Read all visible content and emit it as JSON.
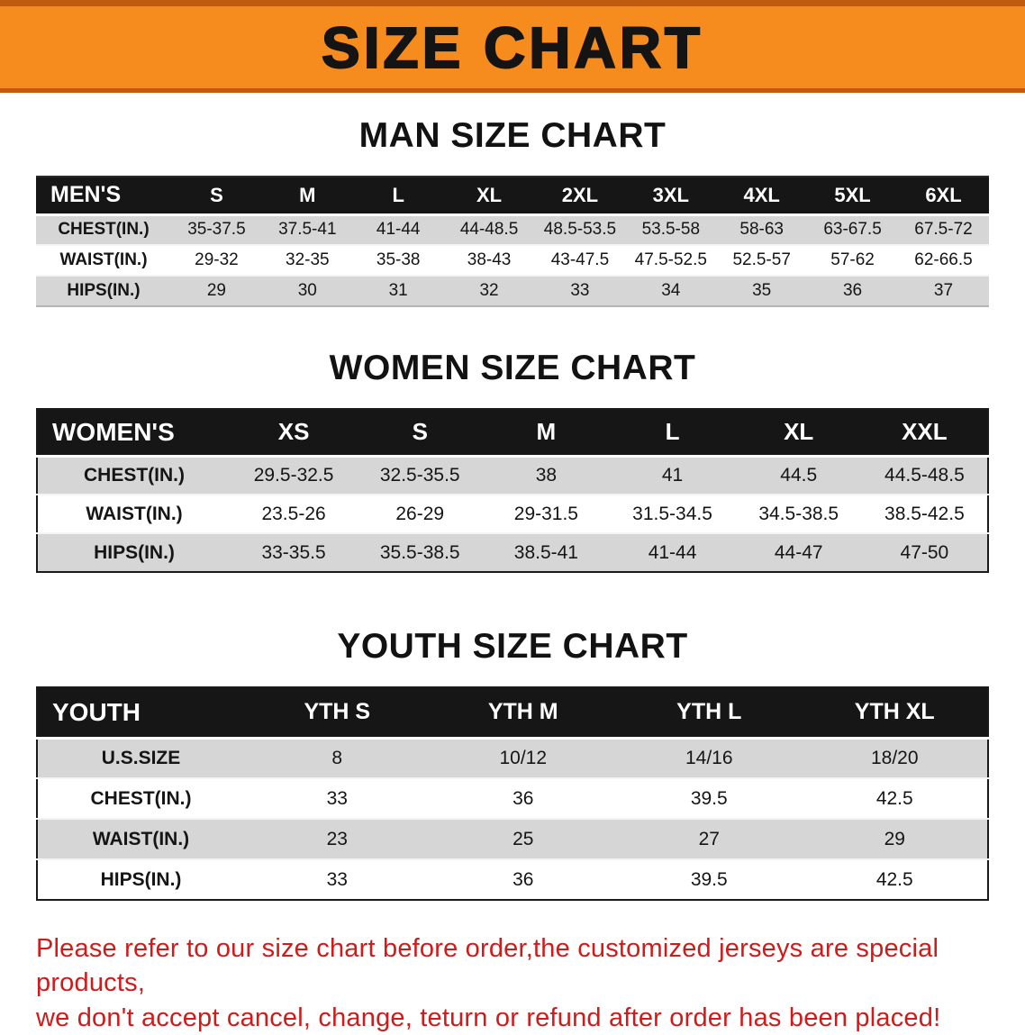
{
  "banner": {
    "title": "SIZE CHART"
  },
  "colors": {
    "banner_bg": "#f68b1e",
    "banner_edge": "#bf5a0e",
    "table_header_bg": "#161616",
    "row_stripe": "#d6d6d6",
    "disclaimer_red": "#d11a1a"
  },
  "sections": [
    {
      "heading": "MAN SIZE CHART",
      "table": {
        "header": [
          "MEN'S",
          "S",
          "M",
          "L",
          "XL",
          "2XL",
          "3XL",
          "4XL",
          "5XL",
          "6XL"
        ],
        "rows": [
          [
            "CHEST(IN.)",
            "35-37.5",
            "37.5-41",
            "41-44",
            "44-48.5",
            "48.5-53.5",
            "53.5-58",
            "58-63",
            "63-67.5",
            "67.5-72"
          ],
          [
            "WAIST(IN.)",
            "29-32",
            "32-35",
            "35-38",
            "38-43",
            "43-47.5",
            "47.5-52.5",
            "52.5-57",
            "57-62",
            "62-66.5"
          ],
          [
            "HIPS(IN.)",
            "29",
            "30",
            "31",
            "32",
            "33",
            "34",
            "35",
            "36",
            "37"
          ]
        ]
      }
    },
    {
      "heading": "WOMEN SIZE CHART",
      "table": {
        "header": [
          "WOMEN'S",
          "XS",
          "S",
          "M",
          "L",
          "XL",
          "XXL"
        ],
        "rows": [
          [
            "CHEST(IN.)",
            "29.5-32.5",
            "32.5-35.5",
            "38",
            "41",
            "44.5",
            "44.5-48.5"
          ],
          [
            "WAIST(IN.)",
            "23.5-26",
            "26-29",
            "29-31.5",
            "31.5-34.5",
            "34.5-38.5",
            "38.5-42.5"
          ],
          [
            "HIPS(IN.)",
            "33-35.5",
            "35.5-38.5",
            "38.5-41",
            "41-44",
            "44-47",
            "47-50"
          ]
        ]
      }
    },
    {
      "heading": "YOUTH SIZE CHART",
      "table": {
        "header": [
          "YOUTH",
          "YTH S",
          "YTH M",
          "YTH L",
          "YTH XL"
        ],
        "rows": [
          [
            "U.S.SIZE",
            "8",
            "10/12",
            "14/16",
            "18/20"
          ],
          [
            "CHEST(IN.)",
            "33",
            "36",
            "39.5",
            "42.5"
          ],
          [
            "WAIST(IN.)",
            "23",
            "25",
            "27",
            "29"
          ],
          [
            "HIPS(IN.)",
            "33",
            "36",
            "39.5",
            "42.5"
          ]
        ]
      }
    }
  ],
  "disclaimer": {
    "line1": "Please refer to our size chart before order,the customized jerseys are special products,",
    "line2": "we don't accept cancel, change, teturn or refund after order has been placed!"
  }
}
